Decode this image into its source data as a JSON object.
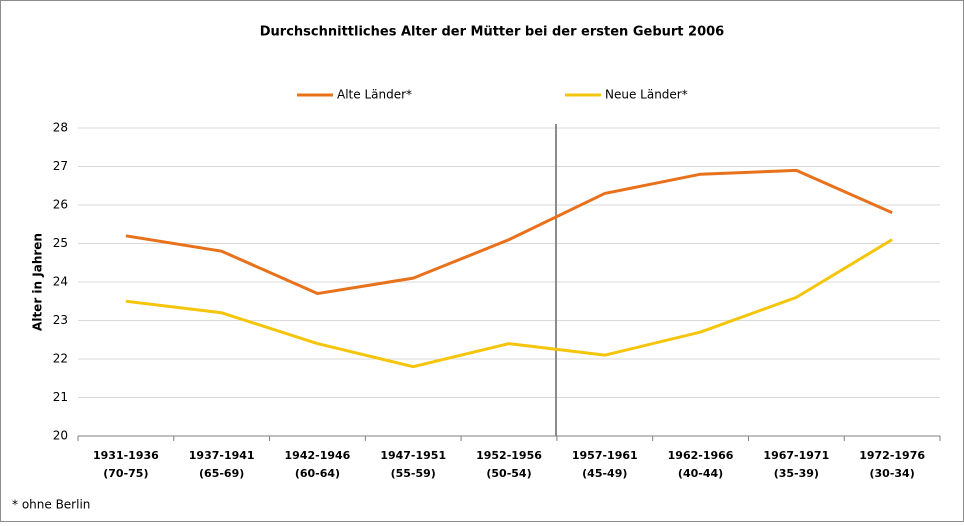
{
  "chart_data": {
    "type": "line",
    "title": "Durchschnittliches Alter der Mütter bei der ersten Geburt 2006",
    "y_label": "Alter in Jahren",
    "footnote": "* ohne Berlin",
    "categories": [
      [
        "1931-1936",
        "(70-75)"
      ],
      [
        "1937-1941",
        "(65-69)"
      ],
      [
        "1942-1946",
        "(60-64)"
      ],
      [
        "1947-1951",
        "(55-59)"
      ],
      [
        "1952-1956",
        "(50-54)"
      ],
      [
        "1957-1961",
        "(45-49)"
      ],
      [
        "1962-1966",
        "(40-44)"
      ],
      [
        "1967-1971",
        "(35-39)"
      ],
      [
        "1972-1976",
        "(30-34)"
      ]
    ],
    "series": [
      {
        "name": "Alte Länder*",
        "color": "#e8711c",
        "values": [
          25.2,
          24.8,
          23.7,
          24.1,
          25.1,
          26.3,
          26.8,
          26.9,
          25.8
        ]
      },
      {
        "name": "Neue Länder*",
        "color": "#f5c50c",
        "values": [
          23.5,
          23.2,
          22.4,
          21.8,
          22.4,
          22.1,
          22.7,
          23.6,
          25.1
        ]
      }
    ],
    "ylim": [
      20,
      28
    ],
    "yticks": [
      20,
      21,
      22,
      23,
      24,
      25,
      26,
      27,
      28
    ],
    "grid": true,
    "legend": "top"
  }
}
